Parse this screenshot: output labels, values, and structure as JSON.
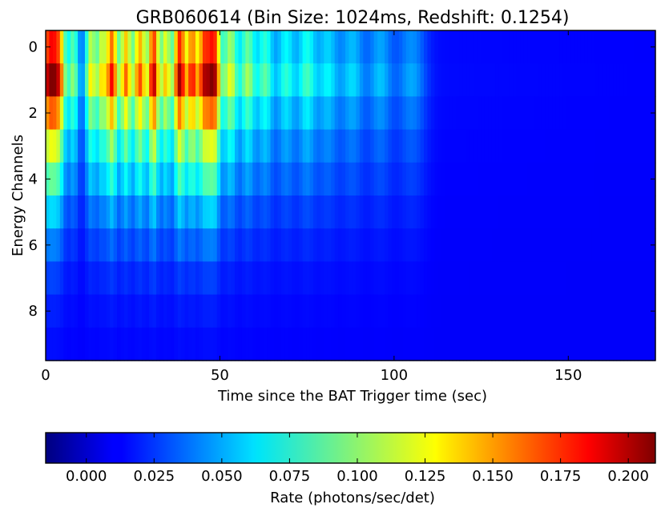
{
  "chart_data": {
    "type": "heatmap",
    "title": "GRB060614 (Bin Size: 1024ms, Redshift: 0.1254)",
    "xlabel": "Time since the BAT Trigger time (sec)",
    "ylabel": "Energy Channels",
    "xlim": [
      0,
      175
    ],
    "ylim": [
      9.5,
      -0.5
    ],
    "x_ticks": [
      0,
      50,
      100,
      150
    ],
    "y_ticks": [
      0,
      2,
      4,
      6,
      8
    ],
    "colormap": "jet",
    "colorbar": {
      "label": "Rate (photons/sec/det)",
      "range": [
        -0.015,
        0.21
      ],
      "ticks": [
        "0.000",
        "0.025",
        "0.050",
        "0.075",
        "0.100",
        "0.125",
        "0.150",
        "0.175",
        "0.200"
      ],
      "orientation": "horizontal"
    },
    "channels": [
      0,
      1,
      2,
      3,
      4,
      5,
      6,
      7,
      8,
      9
    ],
    "time_step_sec": 1.024,
    "background_level": 0.012,
    "pulses": [
      {
        "t": 1.0,
        "width": 1.8,
        "amp": 0.165
      },
      {
        "t": 4.0,
        "width": 1.4,
        "amp": 0.11
      },
      {
        "t": 8.0,
        "width": 1.1,
        "amp": 0.07
      },
      {
        "t": 13.0,
        "width": 1.2,
        "amp": 0.1
      },
      {
        "t": 16.0,
        "width": 1.0,
        "amp": 0.09
      },
      {
        "t": 19.0,
        "width": 1.3,
        "amp": 0.155
      },
      {
        "t": 23.0,
        "width": 1.2,
        "amp": 0.13
      },
      {
        "t": 27.0,
        "width": 1.4,
        "amp": 0.14
      },
      {
        "t": 31.0,
        "width": 1.2,
        "amp": 0.17
      },
      {
        "t": 34.5,
        "width": 1.1,
        "amp": 0.11
      },
      {
        "t": 38.5,
        "width": 1.4,
        "amp": 0.18
      },
      {
        "t": 42.0,
        "width": 1.1,
        "amp": 0.14
      },
      {
        "t": 45.5,
        "width": 1.5,
        "amp": 0.165
      },
      {
        "t": 48.5,
        "width": 1.3,
        "amp": 0.16
      },
      {
        "t": 53.0,
        "width": 1.6,
        "amp": 0.1
      },
      {
        "t": 58.0,
        "width": 1.6,
        "amp": 0.085
      },
      {
        "t": 63.0,
        "width": 1.8,
        "amp": 0.07
      },
      {
        "t": 69.0,
        "width": 2.0,
        "amp": 0.06
      },
      {
        "t": 75.0,
        "width": 2.0,
        "amp": 0.065
      },
      {
        "t": 81.0,
        "width": 2.2,
        "amp": 0.05
      },
      {
        "t": 88.0,
        "width": 2.5,
        "amp": 0.045
      },
      {
        "t": 96.0,
        "width": 2.5,
        "amp": 0.04
      },
      {
        "t": 105.0,
        "width": 3.0,
        "amp": 0.035
      }
    ],
    "channel_profile": [
      0.85,
      1.0,
      0.75,
      0.55,
      0.4,
      0.25,
      0.15,
      0.08,
      0.04,
      0.02
    ]
  }
}
